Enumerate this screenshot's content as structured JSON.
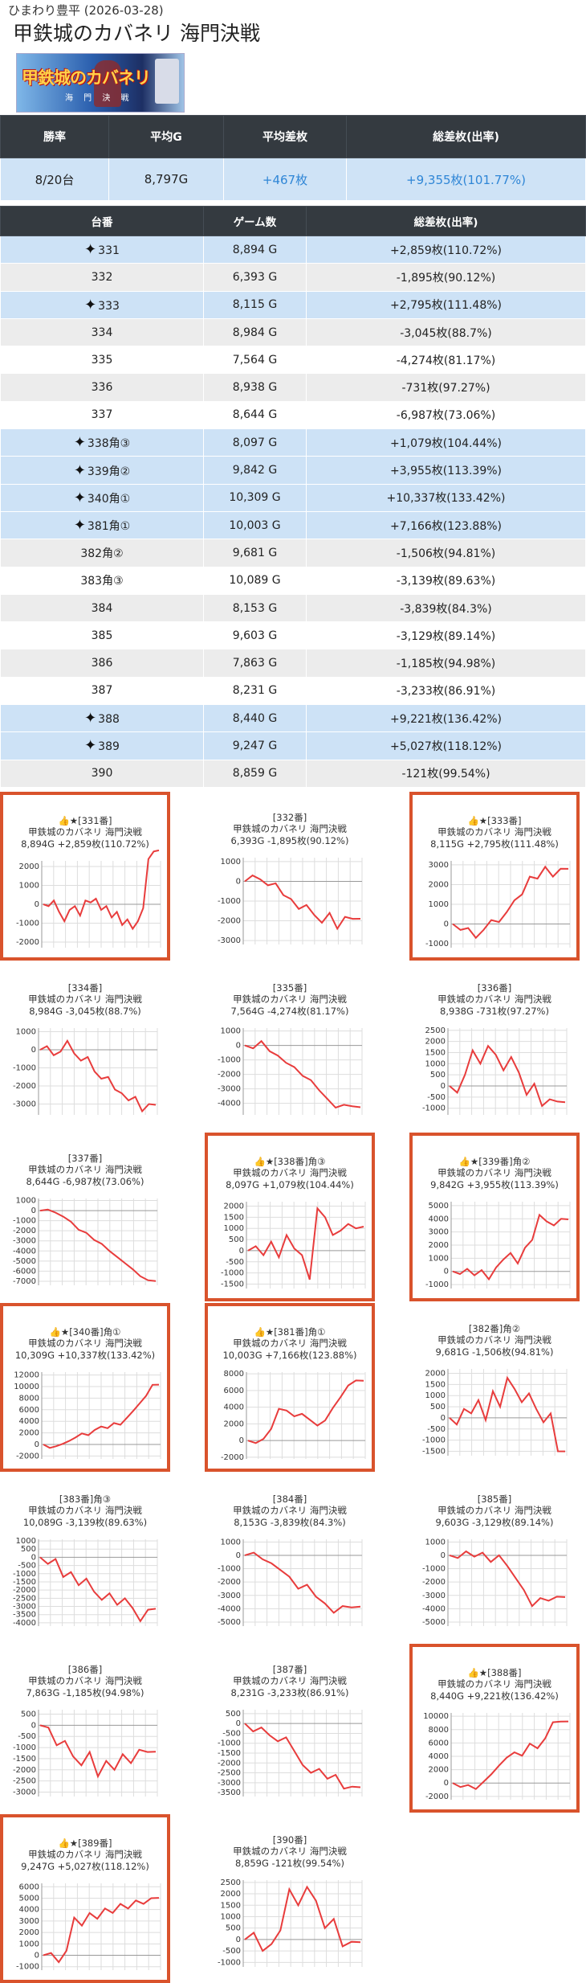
{
  "header": {
    "store": "ひまわり豊平 (2026-03-28)",
    "title": "甲鉄城のカバネリ 海門決戦"
  },
  "banner": {
    "logo_text": "甲鉄城のカバネリ",
    "sub_text": "海 門 決 戦"
  },
  "summary": {
    "headers": [
      "勝率",
      "平均G",
      "平均差枚",
      "総差枚(出率)"
    ],
    "values": [
      "8/20台",
      "8,797G",
      "+467枚",
      "+9,355枚(101.77%)"
    ]
  },
  "units_table": {
    "headers": [
      "台番",
      "ゲーム数",
      "総差枚(出率)"
    ],
    "rows": [
      {
        "no": "331",
        "games": "8,894 G",
        "diff": "+2,859枚(110.72%)",
        "win": true
      },
      {
        "no": "332",
        "games": "6,393 G",
        "diff": "-1,895枚(90.12%)",
        "win": false
      },
      {
        "no": "333",
        "games": "8,115 G",
        "diff": "+2,795枚(111.48%)",
        "win": true
      },
      {
        "no": "334",
        "games": "8,984 G",
        "diff": "-3,045枚(88.7%)",
        "win": false
      },
      {
        "no": "335",
        "games": "7,564 G",
        "diff": "-4,274枚(81.17%)",
        "win": false
      },
      {
        "no": "336",
        "games": "8,938 G",
        "diff": "-731枚(97.27%)",
        "win": false
      },
      {
        "no": "337",
        "games": "8,644 G",
        "diff": "-6,987枚(73.06%)",
        "win": false
      },
      {
        "no": "338角③",
        "games": "8,097 G",
        "diff": "+1,079枚(104.44%)",
        "win": true
      },
      {
        "no": "339角②",
        "games": "9,842 G",
        "diff": "+3,955枚(113.39%)",
        "win": true
      },
      {
        "no": "340角①",
        "games": "10,309 G",
        "diff": "+10,337枚(133.42%)",
        "win": true
      },
      {
        "no": "381角①",
        "games": "10,003 G",
        "diff": "+7,166枚(123.88%)",
        "win": true
      },
      {
        "no": "382角②",
        "games": "9,681 G",
        "diff": "-1,506枚(94.81%)",
        "win": false
      },
      {
        "no": "383角③",
        "games": "10,089 G",
        "diff": "-3,139枚(89.63%)",
        "win": false
      },
      {
        "no": "384",
        "games": "8,153 G",
        "diff": "-3,839枚(84.3%)",
        "win": false
      },
      {
        "no": "385",
        "games": "9,603 G",
        "diff": "-3,129枚(89.14%)",
        "win": false
      },
      {
        "no": "386",
        "games": "7,863 G",
        "diff": "-1,185枚(94.98%)",
        "win": false
      },
      {
        "no": "387",
        "games": "8,231 G",
        "diff": "-3,233枚(86.91%)",
        "win": false
      },
      {
        "no": "388",
        "games": "8,440 G",
        "diff": "+9,221枚(136.42%)",
        "win": true
      },
      {
        "no": "389",
        "games": "9,247 G",
        "diff": "+5,027枚(118.12%)",
        "win": true
      },
      {
        "no": "390",
        "games": "8,859 G",
        "diff": "-121枚(99.54%)",
        "win": false
      }
    ]
  },
  "cards": [
    {
      "label": "👍★[331番]",
      "machine": "甲鉄城のカバネリ 海門決戦",
      "stats": "8,894G +2,859枚(110.72%)",
      "win": true,
      "ticks": [
        "2000",
        "1000",
        "0",
        "-1000",
        "-2000"
      ],
      "ymin": -2300,
      "ymax": 2300,
      "pts": [
        0,
        -100,
        200,
        -400,
        -900,
        -300,
        -100,
        -600,
        200,
        100,
        300,
        -300,
        -100,
        -700,
        -400,
        -1100,
        -800,
        -1300,
        -900,
        -200,
        2400,
        2800,
        2859
      ]
    },
    {
      "label": "[332番]",
      "machine": "甲鉄城のカバネリ 海門決戦",
      "stats": "6,393G -1,895枚(90.12%)",
      "win": false,
      "ticks": [
        "1000",
        "0",
        "-1000",
        "-2000",
        "-3000"
      ],
      "ymin": -3200,
      "ymax": 1200,
      "pts": [
        0,
        300,
        100,
        -200,
        -100,
        -700,
        -900,
        -1400,
        -1200,
        -1700,
        -2100,
        -1600,
        -2400,
        -1800,
        -1900,
        -1895
      ]
    },
    {
      "label": "👍★[333番]",
      "machine": "甲鉄城のカバネリ 海門決戦",
      "stats": "8,115G +2,795枚(111.48%)",
      "win": true,
      "ticks": [
        "3000",
        "2000",
        "1000",
        "0",
        "-1000"
      ],
      "ymin": -1200,
      "ymax": 3200,
      "pts": [
        0,
        -300,
        -200,
        -700,
        -300,
        200,
        100,
        600,
        1200,
        1500,
        2400,
        2300,
        2900,
        2400,
        2800,
        2795
      ]
    },
    {
      "label": "[334番]",
      "machine": "甲鉄城のカバネリ 海門決戦",
      "stats": "8,984G -3,045枚(88.7%)",
      "win": false,
      "ticks": [
        "1000",
        "0",
        "-1000",
        "-2000",
        "-3000"
      ],
      "ymin": -3600,
      "ymax": 1200,
      "pts": [
        0,
        200,
        -300,
        -100,
        500,
        -200,
        -600,
        -400,
        -1200,
        -1600,
        -1500,
        -2200,
        -2400,
        -2800,
        -2600,
        -3400,
        -3000,
        -3045
      ]
    },
    {
      "label": "[335番]",
      "machine": "甲鉄城のカバネリ 海門決戦",
      "stats": "7,564G -4,274枚(81.17%)",
      "win": false,
      "ticks": [
        "1000",
        "0",
        "-1000",
        "-2000",
        "-3000",
        "-4000"
      ],
      "ymin": -4800,
      "ymax": 1200,
      "pts": [
        0,
        -200,
        300,
        -400,
        -700,
        -1200,
        -1500,
        -2100,
        -2400,
        -3100,
        -3700,
        -4300,
        -4100,
        -4200,
        -4274
      ]
    },
    {
      "label": "[336番]",
      "machine": "甲鉄城のカバネリ 海門決戦",
      "stats": "8,938G -731枚(97.27%)",
      "win": false,
      "ticks": [
        "2500",
        "2000",
        "1500",
        "1000",
        "500",
        "0",
        "-500",
        "-1000"
      ],
      "ymin": -1300,
      "ymax": 2600,
      "pts": [
        0,
        -300,
        500,
        1600,
        1000,
        1800,
        1400,
        700,
        1300,
        600,
        -400,
        100,
        -900,
        -600,
        -700,
        -731
      ]
    },
    {
      "label": "[337番]",
      "machine": "甲鉄城のカバネリ 海門決戦",
      "stats": "8,644G -6,987枚(73.06%)",
      "win": false,
      "ticks": [
        "1000",
        "0",
        "-1000",
        "-2000",
        "-3000",
        "-4000",
        "-5000",
        "-6000",
        "-7000"
      ],
      "ymin": -7400,
      "ymax": 1200,
      "pts": [
        0,
        100,
        -200,
        -600,
        -1100,
        -1900,
        -2200,
        -2900,
        -3300,
        -4000,
        -4600,
        -5200,
        -5800,
        -6500,
        -6900,
        -6987
      ]
    },
    {
      "label": "👍★[338番]角③",
      "machine": "甲鉄城のカバネリ 海門決戦",
      "stats": "8,097G +1,079枚(104.44%)",
      "win": true,
      "ticks": [
        "2000",
        "1500",
        "1000",
        "500",
        "0",
        "-500",
        "-1000",
        "-1500"
      ],
      "ymin": -1700,
      "ymax": 2200,
      "pts": [
        0,
        200,
        -200,
        400,
        -300,
        700,
        100,
        -200,
        -1300,
        1900,
        1500,
        700,
        900,
        1200,
        1000,
        1079
      ]
    },
    {
      "label": "👍★[339番]角②",
      "machine": "甲鉄城のカバネリ 海門決戦",
      "stats": "9,842G +3,955枚(113.39%)",
      "win": true,
      "ticks": [
        "5000",
        "4000",
        "3000",
        "2000",
        "1000",
        "0",
        "-1000"
      ],
      "ymin": -1300,
      "ymax": 5300,
      "pts": [
        0,
        -200,
        200,
        -300,
        100,
        -600,
        300,
        900,
        1400,
        600,
        1800,
        2400,
        4300,
        3800,
        3500,
        4000,
        3955
      ]
    },
    {
      "label": "👍★[340番]角①",
      "machine": "甲鉄城のカバネリ 海門決戦",
      "stats": "10,309G +10,337枚(133.42%)",
      "win": true,
      "ticks": [
        "12000",
        "10000",
        "8000",
        "6000",
        "4000",
        "2000",
        "0",
        "-2000"
      ],
      "ymin": -2500,
      "ymax": 12500,
      "pts": [
        0,
        -600,
        -300,
        100,
        600,
        1200,
        1900,
        1600,
        2500,
        3100,
        2800,
        3700,
        3400,
        4600,
        5800,
        7100,
        8400,
        10300,
        10337
      ]
    },
    {
      "label": "👍★[381番]角①",
      "machine": "甲鉄城のカバネリ 海門決戦",
      "stats": "10,003G +7,166枚(123.88%)",
      "win": true,
      "ticks": [
        "8000",
        "6000",
        "4000",
        "2000",
        "0",
        "-2000"
      ],
      "ymin": -2200,
      "ymax": 8200,
      "pts": [
        0,
        -300,
        200,
        1400,
        3800,
        3600,
        2900,
        3200,
        2500,
        1800,
        2400,
        3900,
        5200,
        6600,
        7200,
        7166
      ]
    },
    {
      "label": "[382番]角②",
      "machine": "甲鉄城のカバネリ 海門決戦",
      "stats": "9,681G -1,506枚(94.81%)",
      "win": false,
      "ticks": [
        "2000",
        "1500",
        "1000",
        "500",
        "0",
        "-500",
        "-1000",
        "-1500"
      ],
      "ymin": -1700,
      "ymax": 2200,
      "pts": [
        0,
        -300,
        400,
        200,
        800,
        -100,
        1200,
        500,
        1800,
        1300,
        700,
        1100,
        400,
        -200,
        200,
        -1500,
        -1506
      ]
    },
    {
      "label": "[383番]角③",
      "machine": "甲鉄城のカバネリ 海門決戦",
      "stats": "10,089G -3,139枚(89.63%)",
      "win": false,
      "ticks": [
        "1000",
        "500",
        "0",
        "-500",
        "-1000",
        "-1500",
        "-2000",
        "-2500",
        "-3000",
        "-3500",
        "-4000"
      ],
      "ymin": -4200,
      "ymax": 1100,
      "pts": [
        0,
        -400,
        -100,
        -1200,
        -900,
        -1700,
        -1300,
        -2100,
        -2600,
        -2200,
        -2900,
        -2500,
        -3100,
        -3900,
        -3200,
        -3139
      ]
    },
    {
      "label": "[384番]",
      "machine": "甲鉄城のカバネリ 海門決戦",
      "stats": "8,153G -3,839枚(84.3%)",
      "win": false,
      "ticks": [
        "1000",
        "0",
        "-1000",
        "-2000",
        "-3000",
        "-4000",
        "-5000"
      ],
      "ymin": -5300,
      "ymax": 1200,
      "pts": [
        0,
        200,
        -300,
        -600,
        -1100,
        -1600,
        -2500,
        -2200,
        -3100,
        -3600,
        -4300,
        -3800,
        -3900,
        -3839
      ]
    },
    {
      "label": "[385番]",
      "machine": "甲鉄城のカバネリ 海門決戦",
      "stats": "9,603G -3,129枚(89.14%)",
      "win": false,
      "ticks": [
        "1000",
        "0",
        "-1000",
        "-2000",
        "-3000",
        "-4000",
        "-5000"
      ],
      "ymin": -5300,
      "ymax": 1200,
      "pts": [
        0,
        -200,
        300,
        -100,
        200,
        -500,
        0,
        -800,
        -1700,
        -2600,
        -3800,
        -3200,
        -3400,
        -3100,
        -3129
      ]
    },
    {
      "label": "[386番]",
      "machine": "甲鉄城のカバネリ 海門決戦",
      "stats": "7,863G -1,185枚(94.98%)",
      "win": false,
      "ticks": [
        "500",
        "0",
        "-500",
        "-1000",
        "-1500",
        "-2000",
        "-2500",
        "-3000"
      ],
      "ymin": -3200,
      "ymax": 700,
      "pts": [
        0,
        -100,
        -900,
        -700,
        -1400,
        -1800,
        -1200,
        -2300,
        -1600,
        -2000,
        -1300,
        -1700,
        -1100,
        -1200,
        -1185
      ]
    },
    {
      "label": "[387番]",
      "machine": "甲鉄城のカバネリ 海門決戦",
      "stats": "8,231G -3,233枚(86.91%)",
      "win": false,
      "ticks": [
        "500",
        "0",
        "-500",
        "-1000",
        "-1500",
        "-2000",
        "-2500",
        "-3000",
        "-3500"
      ],
      "ymin": -3700,
      "ymax": 700,
      "pts": [
        0,
        -400,
        -200,
        -600,
        -900,
        -700,
        -1400,
        -2100,
        -2500,
        -2300,
        -2800,
        -2600,
        -3300,
        -3200,
        -3233
      ]
    },
    {
      "label": "👍★[388番]",
      "machine": "甲鉄城のカバネリ 海門決戦",
      "stats": "8,440G +9,221枚(136.42%)",
      "win": true,
      "ticks": [
        "10000",
        "8000",
        "6000",
        "4000",
        "2000",
        "0",
        "-2000"
      ],
      "ymin": -2500,
      "ymax": 10500,
      "pts": [
        0,
        -600,
        -300,
        -900,
        200,
        1300,
        2600,
        3800,
        4600,
        4100,
        5900,
        5200,
        6700,
        9100,
        9200,
        9221
      ]
    },
    {
      "label": "👍★[389番]",
      "machine": "甲鉄城のカバネリ 海門決戦",
      "stats": "9,247G +5,027枚(118.12%)",
      "win": true,
      "ticks": [
        "6000",
        "5000",
        "4000",
        "3000",
        "2000",
        "1000",
        "0",
        "-1000"
      ],
      "ymin": -1300,
      "ymax": 6300,
      "pts": [
        0,
        200,
        -600,
        400,
        3300,
        2600,
        3700,
        3200,
        4100,
        3700,
        4500,
        4100,
        4800,
        4500,
        5000,
        5027
      ]
    },
    {
      "label": "[390番]",
      "machine": "甲鉄城のカバネリ 海門決戦",
      "stats": "8,859G -121枚(99.54%)",
      "win": false,
      "ticks": [
        "2500",
        "2000",
        "1500",
        "1000",
        "500",
        "0",
        "-500",
        "-1000"
      ],
      "ymin": -1200,
      "ymax": 2600,
      "pts": [
        0,
        300,
        -500,
        -200,
        400,
        2200,
        1500,
        2300,
        1700,
        500,
        900,
        -300,
        -100,
        -121
      ]
    }
  ],
  "colors": {
    "line": "#e83c3c",
    "highlight_border": "#d9532c",
    "row_blue": "#cde2f6",
    "row_gray": "#ececec"
  }
}
